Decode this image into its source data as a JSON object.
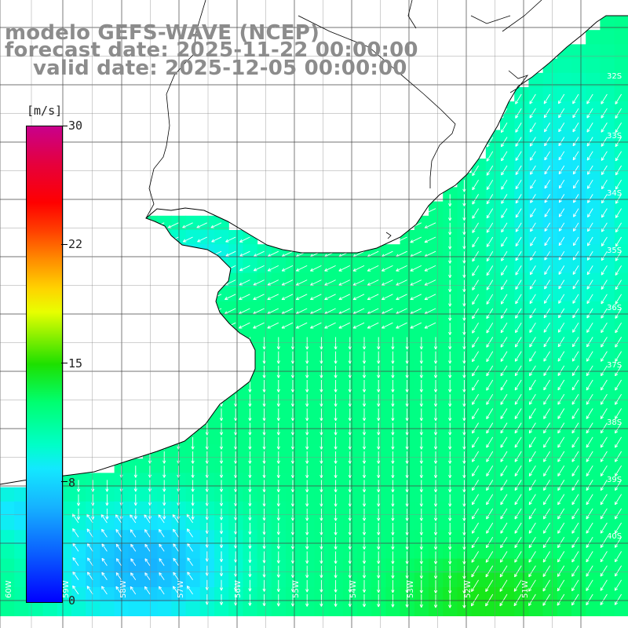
{
  "header": {
    "model": "modelo GEFS-WAVE (NCEP)",
    "forecast": "forecast date: 2025-11-22 00:00:00",
    "valid": "valid date: 2025-12-05 00:00:00"
  },
  "legend": {
    "unit": "[m/s]",
    "ticks": [
      "30",
      "22",
      "15",
      "8",
      "0"
    ]
  },
  "axes": {
    "lon_labels": [
      "60W",
      "59W",
      "58W",
      "57W",
      "56W",
      "55W",
      "54W",
      "53W",
      "52W",
      "51W"
    ],
    "lat_labels": [
      "32S",
      "33S",
      "34S",
      "35S",
      "36S",
      "37S",
      "38S",
      "39S",
      "40S"
    ]
  },
  "colors": {
    "land": "#ffffff",
    "coastline": "#000000",
    "grid": "#444444",
    "arrows": "#ffffff"
  }
}
